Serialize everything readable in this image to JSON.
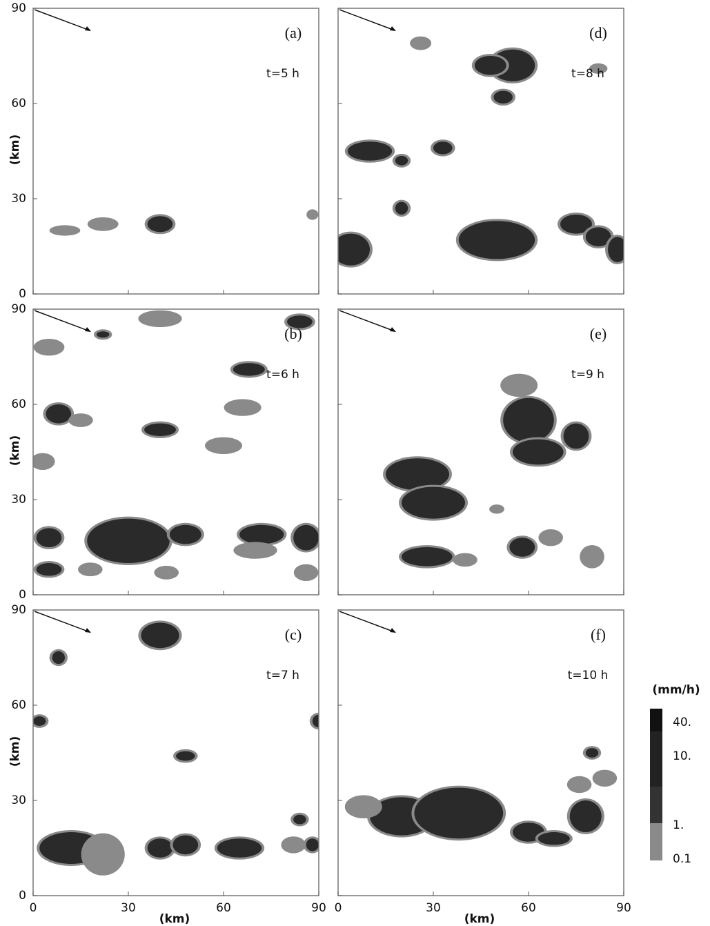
{
  "figure": {
    "panels": [
      {
        "label": "(a)",
        "time": "t=5 h"
      },
      {
        "label": "(d)",
        "time": "t=8 h"
      },
      {
        "label": "(b)",
        "time": "t=6 h"
      },
      {
        "label": "(e)",
        "time": "t=9 h"
      },
      {
        "label": "(c)",
        "time": "t=7 h"
      },
      {
        "label": "(f)",
        "time": "t=10 h"
      }
    ],
    "xlabel": "(km)",
    "ylabel": "(km)",
    "xlim": [
      0,
      90
    ],
    "ylim": [
      0,
      90
    ],
    "xticks": [
      0,
      30,
      60,
      90
    ],
    "yticks": [
      0,
      30,
      60,
      90
    ],
    "colorbar": {
      "title": "(mm/h)",
      "labels": [
        "40.",
        "10.",
        "1.",
        "0.1"
      ]
    }
  }
}
